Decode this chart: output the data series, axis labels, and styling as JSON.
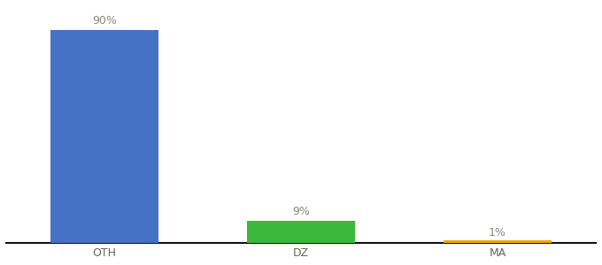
{
  "categories": [
    "OTH",
    "DZ",
    "MA"
  ],
  "values": [
    90,
    9,
    1
  ],
  "bar_colors": [
    "#4472c4",
    "#3cb83c",
    "#f4a700"
  ],
  "ylim": [
    0,
    100
  ],
  "bar_labels": [
    "90%",
    "9%",
    "1%"
  ],
  "background_color": "#ffffff",
  "label_fontsize": 9,
  "tick_fontsize": 9,
  "bar_width": 0.55,
  "x_positions": [
    0.5,
    1.5,
    2.5
  ],
  "xlim": [
    0.0,
    3.0
  ]
}
